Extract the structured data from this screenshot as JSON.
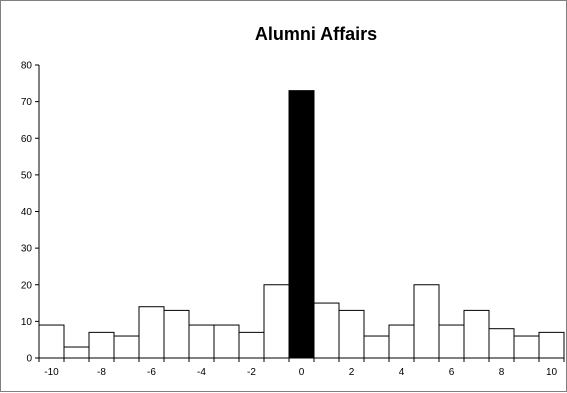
{
  "chart_data": {
    "type": "bar",
    "title": "Alumni Affairs",
    "xlabel": "",
    "ylabel": "",
    "x": [
      -10,
      -9,
      -8,
      -7,
      -6,
      -5,
      -4,
      -3,
      -2,
      -1,
      0,
      1,
      2,
      3,
      4,
      5,
      6,
      7,
      8,
      9,
      10
    ],
    "values": [
      9,
      3,
      7,
      6,
      14,
      13,
      9,
      9,
      7,
      20,
      73,
      15,
      13,
      6,
      9,
      20,
      9,
      13,
      8,
      6,
      7
    ],
    "highlight_x": 0,
    "x_tick_labels": [
      "-10",
      "-8",
      "-6",
      "-4",
      "-2",
      "0",
      "2",
      "4",
      "6",
      "8",
      "10"
    ],
    "y_tick_labels": [
      "0",
      "10",
      "20",
      "30",
      "40",
      "50",
      "60",
      "70",
      "80"
    ],
    "ylim": [
      0,
      80
    ],
    "xlim": [
      -10.5,
      10.5
    ],
    "grid": false,
    "bar_color": "#ffffff",
    "highlight_color": "#000000",
    "edge_color": "#000000"
  }
}
